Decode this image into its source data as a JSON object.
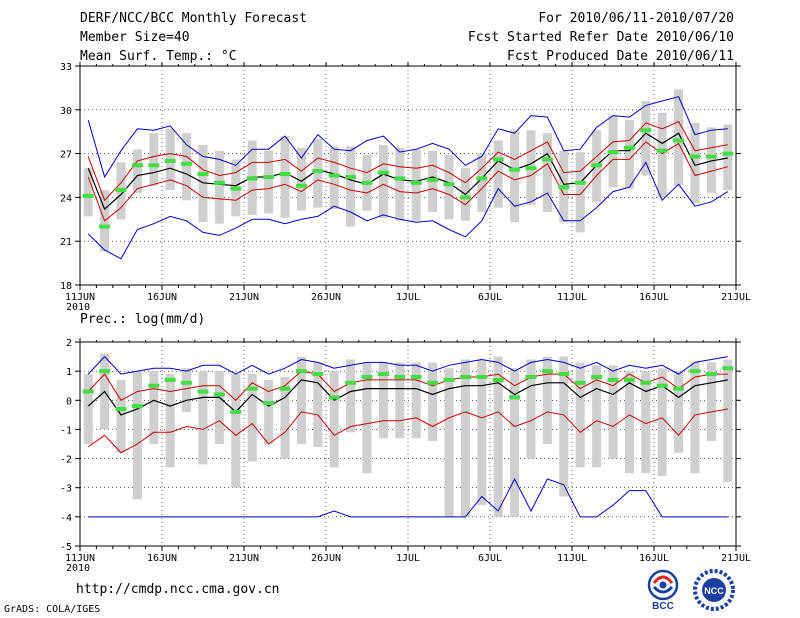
{
  "header": {
    "title": "DERF/NCC/BCC Monthly Forecast",
    "member_size": "Member Size=40",
    "variable1": "Mean Surf. Temp.: °C",
    "period": "For 2010/06/11-2010/07/20",
    "fcst_started": "Fcst Started Refer Date 2010/06/10",
    "fcst_produced": "Fcst Produced Date 2010/06/11"
  },
  "footer": {
    "url": "http://cmdp.ncc.cma.gov.cn",
    "credit": "GrADS: COLA/IGES",
    "logo1_text": "BCC",
    "logo2_text": "NCC"
  },
  "colors": {
    "box": "#cfcfcf",
    "green": "#44dd44",
    "mean": "#000000",
    "sd": "#cc0000",
    "range": "#0000cc",
    "grid": "#000000"
  },
  "chart_data": [
    {
      "type": "box",
      "title": "",
      "xlabel": "",
      "ylabel": "Mean Surf. Temp.: °C",
      "ylim": [
        18,
        33
      ],
      "yticks": [
        18,
        21,
        24,
        27,
        30,
        33
      ],
      "xlim": [
        0,
        40
      ],
      "xticks": [
        {
          "pos": 0,
          "label": "11JUN"
        },
        {
          "pos": 5,
          "label": "16JUN"
        },
        {
          "pos": 10,
          "label": "21JUN"
        },
        {
          "pos": 15,
          "label": "26JUN"
        },
        {
          "pos": 20,
          "label": "1JUL"
        },
        {
          "pos": 25,
          "label": "6JUL"
        },
        {
          "pos": 30,
          "label": "11JUL"
        },
        {
          "pos": 35,
          "label": "16JUL"
        },
        {
          "pos": 40,
          "label": "21JUL"
        }
      ],
      "year_label": "2010",
      "days": [
        1,
        2,
        3,
        4,
        5,
        6,
        7,
        8,
        9,
        10,
        11,
        12,
        13,
        14,
        15,
        16,
        17,
        18,
        19,
        20,
        21,
        22,
        23,
        24,
        25,
        26,
        27,
        28,
        29,
        30,
        31,
        32,
        33,
        34,
        35,
        36,
        37,
        38,
        39,
        40
      ],
      "obs": [
        24.1,
        22.0,
        24.5,
        26.2,
        26.2,
        26.5,
        26.3,
        25.6,
        25.0,
        24.6,
        25.3,
        25.4,
        25.6,
        24.8,
        25.8,
        25.5,
        25.4,
        25.0,
        25.7,
        25.3,
        25.0,
        25.2,
        24.9,
        24.0,
        25.3,
        26.6,
        25.9,
        26.0,
        26.6,
        24.7,
        25.0,
        26.2,
        27.1,
        27.4,
        28.6,
        27.2,
        27.9,
        26.8,
        26.8,
        27.0
      ],
      "box_low": [
        22.7,
        20.3,
        22.5,
        24.3,
        24.8,
        24.5,
        23.8,
        22.3,
        22.2,
        22.7,
        22.8,
        22.9,
        22.6,
        23.1,
        23.3,
        23.2,
        22.0,
        23.1,
        22.6,
        22.4,
        22.4,
        23.0,
        22.5,
        22.4,
        23.0,
        23.3,
        22.3,
        23.5,
        23.0,
        22.3,
        21.6,
        23.7,
        24.7,
        24.6,
        25.5,
        24.0,
        24.8,
        23.6,
        24.3,
        24.5
      ],
      "box_high": [
        26.0,
        24.5,
        26.4,
        27.3,
        28.4,
        28.7,
        28.4,
        27.6,
        27.2,
        26.6,
        27.9,
        27.2,
        28.2,
        27.4,
        28.0,
        27.5,
        27.5,
        26.9,
        27.6,
        27.4,
        27.3,
        27.2,
        26.9,
        26.0,
        27.0,
        27.9,
        28.6,
        28.6,
        28.4,
        27.2,
        27.1,
        28.6,
        29.6,
        29.3,
        30.6,
        29.8,
        31.4,
        29.1,
        28.8,
        29.0
      ],
      "sd_high": [
        26.8,
        23.8,
        25.0,
        26.5,
        26.8,
        27.0,
        26.8,
        25.9,
        25.5,
        25.7,
        26.4,
        26.4,
        26.6,
        25.8,
        26.7,
        26.4,
        26.0,
        25.7,
        26.3,
        26.1,
        26.0,
        26.2,
        25.7,
        25.0,
        26.0,
        27.1,
        26.6,
        27.2,
        27.8,
        25.7,
        25.8,
        26.8,
        27.8,
        27.9,
        29.1,
        28.7,
        29.2,
        27.2,
        27.4,
        27.6
      ],
      "mean": [
        26.0,
        23.2,
        24.2,
        25.5,
        25.7,
        26.0,
        25.6,
        25.0,
        24.9,
        24.8,
        25.4,
        25.4,
        25.7,
        25.1,
        25.9,
        25.6,
        25.2,
        24.9,
        25.6,
        25.2,
        25.1,
        25.4,
        25.0,
        24.2,
        25.3,
        26.5,
        25.9,
        26.3,
        27.0,
        24.9,
        25.0,
        26.2,
        27.2,
        27.2,
        28.4,
        27.7,
        28.4,
        26.2,
        26.5,
        26.7
      ],
      "sd_low": [
        25.4,
        22.4,
        23.3,
        24.6,
        24.9,
        25.2,
        24.8,
        24.0,
        23.9,
        23.8,
        24.5,
        24.6,
        24.9,
        24.4,
        25.2,
        24.9,
        24.5,
        24.3,
        24.9,
        24.4,
        24.3,
        24.6,
        24.2,
        23.5,
        24.6,
        25.8,
        25.2,
        25.5,
        26.3,
        24.2,
        24.2,
        25.5,
        26.6,
        26.6,
        27.8,
        27.0,
        27.7,
        25.5,
        25.8,
        26.1
      ],
      "max": [
        29.3,
        25.4,
        27.2,
        28.7,
        28.6,
        28.9,
        27.6,
        26.8,
        26.6,
        26.2,
        27.3,
        27.3,
        28.2,
        26.7,
        28.3,
        27.3,
        27.2,
        27.9,
        28.2,
        27.1,
        27.3,
        27.7,
        27.3,
        26.2,
        26.8,
        28.7,
        28.4,
        29.6,
        29.5,
        27.2,
        27.3,
        28.8,
        29.6,
        29.5,
        30.3,
        30.6,
        30.9,
        28.3,
        28.6,
        28.7
      ],
      "min": [
        21.5,
        20.4,
        19.8,
        21.8,
        22.2,
        22.7,
        22.4,
        21.6,
        21.4,
        21.9,
        22.5,
        22.5,
        22.2,
        22.5,
        22.7,
        23.4,
        23.0,
        22.4,
        22.8,
        22.5,
        22.3,
        22.4,
        21.8,
        21.3,
        22.4,
        24.6,
        23.4,
        23.7,
        24.3,
        22.4,
        22.4,
        23.3,
        24.4,
        24.7,
        26.4,
        23.8,
        24.9,
        23.4,
        23.7,
        24.4
      ]
    },
    {
      "type": "box",
      "title": "",
      "xlabel": "",
      "ylabel": "Prec.: log(mm/d)",
      "ylim": [
        -5,
        2
      ],
      "yticks": [
        -5,
        -4,
        -3,
        -2,
        -1,
        0,
        1,
        2
      ],
      "xlim": [
        0,
        40
      ],
      "xticks": [
        {
          "pos": 0,
          "label": "11JUN"
        },
        {
          "pos": 5,
          "label": "16JUN"
        },
        {
          "pos": 10,
          "label": "21JUN"
        },
        {
          "pos": 15,
          "label": "26JUN"
        },
        {
          "pos": 20,
          "label": "1JUL"
        },
        {
          "pos": 25,
          "label": "6JUL"
        },
        {
          "pos": 30,
          "label": "11JUL"
        },
        {
          "pos": 35,
          "label": "16JUL"
        },
        {
          "pos": 40,
          "label": "21JUL"
        }
      ],
      "year_label": "2010",
      "days": [
        1,
        2,
        3,
        4,
        5,
        6,
        7,
        8,
        9,
        10,
        11,
        12,
        13,
        14,
        15,
        16,
        17,
        18,
        19,
        20,
        21,
        22,
        23,
        24,
        25,
        26,
        27,
        28,
        29,
        30,
        31,
        32,
        33,
        34,
        35,
        36,
        37,
        38,
        39,
        40
      ],
      "obs": [
        0.3,
        1.0,
        -0.3,
        -0.2,
        0.5,
        0.7,
        0.6,
        0.3,
        0.2,
        -0.4,
        0.4,
        -0.1,
        0.4,
        1.0,
        0.9,
        0.1,
        0.6,
        0.8,
        0.9,
        0.8,
        0.8,
        0.6,
        0.7,
        0.8,
        0.8,
        0.7,
        0.1,
        0.8,
        1.0,
        0.9,
        0.6,
        0.8,
        0.7,
        0.7,
        0.6,
        0.5,
        0.4,
        1.0,
        0.9,
        1.1
      ],
      "box_low": [
        -1.5,
        -1.0,
        -1.8,
        -3.4,
        -1.5,
        -2.3,
        -0.4,
        -2.2,
        -1.5,
        -3.0,
        -2.1,
        -1.5,
        -2.0,
        -1.5,
        -1.6,
        -2.3,
        -1.1,
        -2.5,
        -1.3,
        -1.3,
        -1.3,
        -1.4,
        -4.0,
        -4.0,
        -3.6,
        -4.0,
        -4.0,
        -2.0,
        -1.5,
        -3.3,
        -2.3,
        -2.3,
        -2.0,
        -2.5,
        -2.5,
        -2.6,
        -1.8,
        -2.5,
        -1.4,
        -2.8
      ],
      "box_high": [
        0.9,
        1.6,
        0.7,
        1.0,
        1.0,
        0.9,
        1.1,
        1.0,
        1.0,
        0.9,
        0.9,
        0.7,
        0.8,
        1.5,
        1.3,
        1.0,
        1.4,
        1.3,
        1.3,
        1.3,
        1.3,
        1.3,
        1.1,
        1.4,
        1.4,
        1.5,
        1.1,
        1.4,
        1.5,
        1.5,
        1.3,
        1.2,
        1.2,
        1.0,
        1.0,
        1.1,
        1.0,
        1.3,
        1.3,
        1.4
      ],
      "sd_high": [
        0.3,
        0.9,
        0.0,
        0.3,
        0.4,
        0.3,
        0.4,
        0.5,
        0.5,
        0.0,
        0.6,
        0.3,
        0.5,
        1.0,
        0.9,
        0.3,
        0.6,
        0.7,
        0.7,
        0.7,
        0.7,
        0.5,
        0.7,
        0.8,
        0.8,
        0.9,
        0.5,
        0.8,
        0.9,
        0.9,
        0.4,
        0.7,
        0.5,
        0.9,
        0.6,
        0.8,
        0.4,
        0.8,
        0.9,
        0.9
      ],
      "mean": [
        -0.2,
        0.3,
        -0.5,
        -0.3,
        0.0,
        -0.2,
        0.0,
        0.1,
        0.1,
        -0.4,
        0.2,
        -0.2,
        0.1,
        0.7,
        0.6,
        0.0,
        0.3,
        0.4,
        0.4,
        0.4,
        0.4,
        0.2,
        0.4,
        0.5,
        0.5,
        0.6,
        0.2,
        0.5,
        0.6,
        0.6,
        0.1,
        0.4,
        0.2,
        0.6,
        0.3,
        0.5,
        0.1,
        0.5,
        0.6,
        0.7
      ],
      "sd_low": [
        -1.6,
        -1.2,
        -1.8,
        -1.5,
        -1.1,
        -1.1,
        -0.9,
        -1.0,
        -0.7,
        -1.2,
        -0.8,
        -1.5,
        -1.1,
        -0.4,
        -0.5,
        -1.2,
        -0.9,
        -0.8,
        -0.7,
        -0.7,
        -0.6,
        -0.9,
        -0.6,
        -0.4,
        -0.6,
        -0.4,
        -0.9,
        -0.7,
        -0.4,
        -0.5,
        -1.1,
        -0.7,
        -0.9,
        -0.5,
        -0.8,
        -0.6,
        -1.2,
        -0.5,
        -0.4,
        -0.3
      ],
      "max": [
        0.9,
        1.5,
        0.9,
        1.0,
        1.1,
        1.1,
        1.0,
        1.2,
        1.2,
        0.9,
        1.2,
        0.9,
        1.1,
        1.4,
        1.3,
        1.1,
        1.2,
        1.3,
        1.3,
        1.2,
        1.2,
        1.0,
        1.2,
        1.3,
        1.4,
        1.3,
        1.0,
        1.3,
        1.4,
        1.3,
        1.1,
        1.3,
        1.0,
        1.2,
        1.1,
        1.2,
        0.9,
        1.3,
        1.4,
        1.5
      ],
      "min": [
        -4.0,
        -4.0,
        -4.0,
        -4.0,
        -4.0,
        -4.0,
        -4.0,
        -4.0,
        -4.0,
        -4.0,
        -4.0,
        -4.0,
        -4.0,
        -4.0,
        -4.0,
        -3.8,
        -4.0,
        -4.0,
        -4.0,
        -4.0,
        -4.0,
        -4.0,
        -4.0,
        -4.0,
        -3.3,
        -3.8,
        -2.7,
        -3.8,
        -2.7,
        -2.9,
        -4.0,
        -4.0,
        -3.6,
        -3.1,
        -3.1,
        -4.0,
        -4.0,
        -4.0,
        -4.0,
        -4.0
      ]
    }
  ]
}
